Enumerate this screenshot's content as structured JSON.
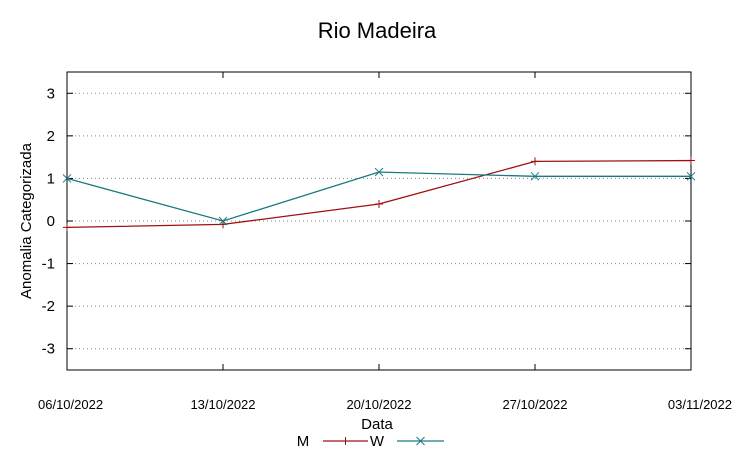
{
  "chart_data": {
    "type": "line",
    "title": "Rio Madeira",
    "xlabel": "Data",
    "ylabel": "Anomalia Categorizada",
    "x": [
      "06/10/2022",
      "13/10/2022",
      "20/10/2022",
      "27/10/2022",
      "03/11/2022"
    ],
    "ylim": [
      -3.5,
      3.5
    ],
    "yticks": [
      "3",
      "2",
      "1",
      "0",
      "-1",
      "-2",
      "-3"
    ],
    "ytick_values": [
      3,
      2,
      1,
      0,
      -1,
      -2,
      -3
    ],
    "grid": "horizontal dotted",
    "legend": "bottom-center",
    "series": [
      {
        "name": "M",
        "color": "#a01010",
        "marker": "plus",
        "values": [
          -0.15,
          -0.08,
          0.4,
          1.4,
          1.42
        ]
      },
      {
        "name": "W",
        "color": "#1a7a80",
        "marker": "cross",
        "values": [
          1.0,
          0.0,
          1.15,
          1.05,
          1.05
        ]
      }
    ]
  }
}
